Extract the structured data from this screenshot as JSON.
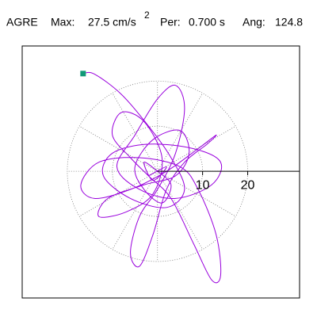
{
  "chart_data": {
    "type": "hodogram",
    "title_parts": [
      "AGRE",
      "Max:",
      "27.5 cm/s",
      "2",
      "Per:",
      "0.700 s",
      "Ang:",
      "124.8"
    ],
    "xlim": [
      -30,
      31.5
    ],
    "ylim": [
      -28,
      27.7
    ],
    "xticks": [
      10,
      20
    ],
    "rings": [
      10,
      20
    ],
    "series": [
      {
        "color": "#9900dd",
        "marker_color": "#119977",
        "x": [
          -16.5,
          -14,
          -8,
          -2,
          3,
          6,
          2,
          -6,
          -12,
          -10,
          -2,
          8,
          14,
          12,
          4,
          -4,
          -9,
          -5,
          0,
          4,
          6,
          4,
          0,
          -4,
          -6,
          -4,
          -1,
          2,
          6,
          11,
          13,
          9,
          2,
          -6,
          -14,
          -17,
          -13,
          -4,
          5,
          9,
          13,
          14,
          12,
          8,
          3,
          -2,
          -6,
          -10,
          -8,
          -3,
          1,
          -1,
          -7,
          -13,
          -11,
          -3,
          4,
          7,
          5,
          -1,
          -5,
          -3,
          1,
          3,
          0,
          -3,
          -1,
          2,
          -2
        ],
        "y": [
          21.6,
          21.5,
          17,
          10,
          3,
          -4,
          -8,
          -6,
          -1,
          4,
          6,
          5,
          2,
          -3,
          -6,
          -4,
          1,
          8,
          16,
          19,
          14,
          4,
          -4,
          -10,
          -18,
          -21,
          -14,
          -4,
          2,
          6,
          8,
          5,
          0,
          -4,
          -6,
          -3,
          2,
          3,
          1,
          -4,
          -14,
          -23,
          -24,
          -16,
          -6,
          -1,
          3,
          8,
          13,
          11,
          3,
          -5,
          -9,
          -10,
          -6,
          -3,
          -1,
          4,
          9,
          7,
          1,
          -4,
          -7,
          -3,
          0,
          2,
          -2,
          1,
          -1
        ]
      }
    ]
  }
}
